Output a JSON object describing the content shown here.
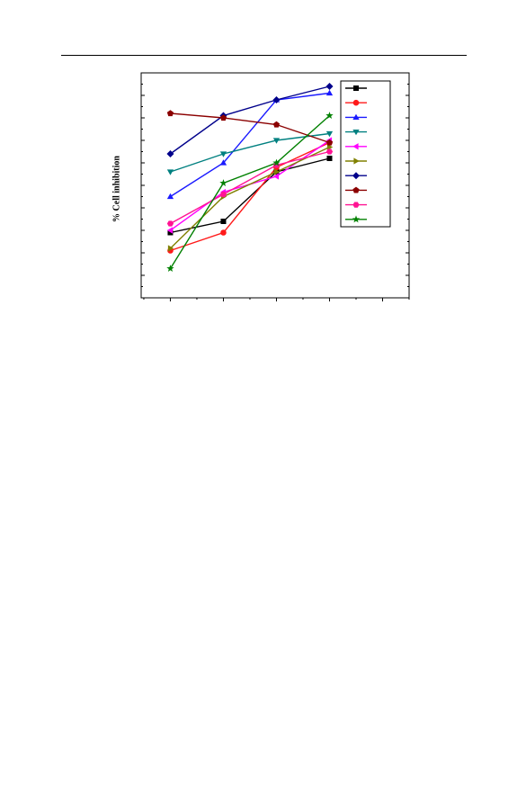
{
  "page": {
    "background": "#ffffff"
  },
  "chart_data": {
    "type": "line",
    "ylabel": "% Cell inhibition",
    "xlabel": "",
    "title": "",
    "x": [
      1,
      2,
      3,
      4
    ],
    "xlim": [
      0.45,
      5.5
    ],
    "ylim": [
      0,
      100
    ],
    "grid": false,
    "legend": "top-right",
    "series": [
      {
        "color": "#000000",
        "marker": "square",
        "values": [
          29,
          34,
          56,
          62
        ]
      },
      {
        "color": "#ff1a1a",
        "marker": "circle",
        "values": [
          21,
          29,
          58,
          69
        ]
      },
      {
        "color": "#1a1aff",
        "marker": "triangle-up",
        "values": [
          45,
          60,
          88,
          91
        ]
      },
      {
        "color": "#008080",
        "marker": "triangle-down",
        "values": [
          56,
          64,
          70,
          73
        ]
      },
      {
        "color": "#ff00ff",
        "marker": "triangle-left",
        "values": [
          30,
          47,
          54,
          70
        ]
      },
      {
        "color": "#808000",
        "marker": "triangle-right",
        "values": [
          22,
          45,
          56,
          67
        ]
      },
      {
        "color": "#00008b",
        "marker": "diamond",
        "values": [
          64,
          81,
          88,
          94
        ]
      },
      {
        "color": "#8b0000",
        "marker": "pentagon",
        "values": [
          82,
          80,
          77,
          69
        ]
      },
      {
        "color": "#ff1493",
        "marker": "hexagon",
        "values": [
          33,
          46,
          59,
          65
        ]
      },
      {
        "color": "#008000",
        "marker": "star",
        "values": [
          13,
          51,
          60,
          81
        ]
      }
    ]
  }
}
